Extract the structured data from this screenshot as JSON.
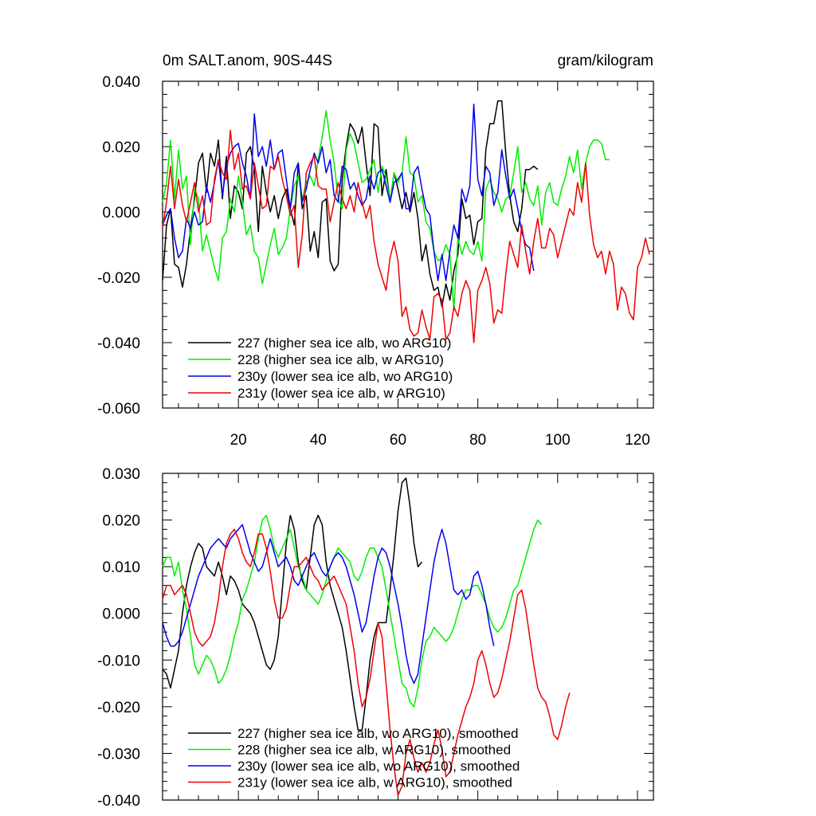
{
  "chart_data": [
    {
      "type": "line",
      "title": "0m SALT.anom, 90S-44S",
      "units": "gram/kilogram",
      "xlim": [
        1,
        124
      ],
      "ylim": [
        -0.06,
        0.04
      ],
      "xticks": [
        20,
        40,
        60,
        80,
        100,
        120
      ],
      "yticks": [
        -0.06,
        -0.04,
        -0.02,
        0.0,
        0.02,
        0.04
      ],
      "ytick_labels": [
        "-0.060",
        "-0.040",
        "-0.020",
        "0.000",
        "0.020",
        "0.040"
      ],
      "legend_position": "bottom-left",
      "series": [
        {
          "name": "227 (higher sea ice alb, wo ARG10)",
          "color": "#000000",
          "x_start": 1,
          "values": [
            -0.021,
            -0.004,
            0.001,
            -0.016,
            -0.017,
            -0.023,
            -0.016,
            -0.005,
            0.004,
            0.015,
            0.018,
            0.006,
            0.018,
            0.014,
            0.022,
            0.004,
            0.017,
            -0.002,
            0.008,
            0.006,
            0.001,
            0.018,
            0.02,
            0.013,
            -0.006,
            0.014,
            0.006,
            0.0,
            0.005,
            -0.002,
            0.004,
            0.007,
            0.001,
            -0.004,
            0.015,
            0.001,
            0.005,
            -0.012,
            -0.006,
            -0.014,
            0.003,
            0.004,
            -0.015,
            -0.018,
            -0.016,
            0.01,
            0.02,
            0.027,
            0.025,
            0.021,
            0.026,
            0.015,
            0.005,
            0.027,
            0.026,
            0.005,
            0.013,
            0.003,
            0.012,
            0.007,
            0.001,
            0.006,
            0.0,
            0.006,
            -0.002,
            -0.015,
            -0.01,
            -0.019,
            -0.024,
            -0.023,
            -0.029,
            -0.022,
            -0.027,
            -0.018,
            -0.013,
            0.004,
            -0.002,
            -0.001,
            -0.01,
            -0.003,
            -0.002,
            0.019,
            0.027,
            0.027,
            0.034,
            0.034,
            0.018,
            0.005,
            -0.003,
            -0.006,
            0.001,
            0.013,
            0.013,
            0.014,
            0.013
          ]
        },
        {
          "name": "228 (higher sea ice alb, w ARG10)",
          "color": "#00ee00",
          "x_start": 1,
          "values": [
            0.003,
            0.009,
            0.022,
            0.004,
            0.019,
            0.007,
            0.011,
            -0.01,
            0.007,
            0.004,
            -0.012,
            -0.007,
            -0.012,
            -0.017,
            -0.021,
            -0.008,
            -0.006,
            0.004,
            0.0,
            0.011,
            0.003,
            -0.007,
            -0.004,
            -0.012,
            -0.014,
            -0.022,
            -0.016,
            -0.01,
            -0.005,
            -0.013,
            -0.011,
            -0.008,
            0.001,
            0.008,
            0.011,
            0.004,
            0.009,
            0.011,
            0.008,
            0.016,
            0.023,
            0.031,
            0.022,
            0.015,
            0.004,
            0.001,
            0.019,
            0.024,
            0.021,
            0.015,
            0.009,
            0.01,
            0.013,
            0.016,
            0.006,
            0.014,
            0.011,
            0.003,
            0.012,
            0.009,
            0.012,
            0.023,
            0.012,
            0.011,
            0.003,
            0.005,
            -0.003,
            -0.005,
            -0.012,
            -0.015,
            -0.014,
            -0.01,
            -0.013,
            -0.03,
            -0.008,
            -0.013,
            -0.009,
            -0.012,
            -0.013,
            -0.009,
            -0.015,
            0.007,
            0.01,
            0.006,
            0.004,
            0.0,
            0.004,
            0.005,
            0.012,
            0.02,
            0.006,
            0.009,
            0.004,
            0.002,
            0.008,
            -0.004,
            0.006,
            0.009,
            0.003,
            0.002,
            0.007,
            0.011,
            0.017,
            0.012,
            0.019,
            0.007,
            0.015,
            0.02,
            0.022,
            0.022,
            0.021,
            0.016,
            0.016
          ]
        },
        {
          "name": "230y (lower sea ice alb, wo ARG10)",
          "color": "#0000ee",
          "x_start": 1,
          "values": [
            -0.004,
            -0.001,
            0.001,
            -0.008,
            -0.014,
            -0.012,
            -0.002,
            -0.005,
            0.0,
            -0.004,
            -0.003,
            0.008,
            0.003,
            0.009,
            0.016,
            0.005,
            0.014,
            0.018,
            0.02,
            0.021,
            0.015,
            0.011,
            0.004,
            0.03,
            0.017,
            0.02,
            0.014,
            0.022,
            0.013,
            0.018,
            0.019,
            0.01,
            0.001,
            0.012,
            0.015,
            0.003,
            0.007,
            0.013,
            0.018,
            0.015,
            0.02,
            0.012,
            0.016,
            0.005,
            0.003,
            0.014,
            0.013,
            0.007,
            0.009,
            0.005,
            0.002,
            0.004,
            0.011,
            0.007,
            0.012,
            0.013,
            0.008,
            0.003,
            0.009,
            0.01,
            0.012,
            0.001,
            0.001,
            0.012,
            0.014,
            0.007,
            0.001,
            -0.001,
            -0.012,
            -0.021,
            -0.013,
            -0.021,
            -0.012,
            -0.004,
            -0.008,
            0.007,
            0.003,
            0.008,
            0.033,
            0.01,
            0.005,
            0.014,
            0.012,
            0.002,
            0.006,
            0.019,
            0.011,
            0.004,
            0.007,
            0.001,
            -0.006,
            -0.01,
            -0.011,
            -0.018
          ]
        },
        {
          "name": "231y (lower sea ice alb, w ARG10)",
          "color": "#ee0000",
          "x_start": 1,
          "values": [
            -0.005,
            0.003,
            0.014,
            0.001,
            0.01,
            0.002,
            -0.003,
            0.003,
            0.009,
            0.0,
            0.005,
            -0.004,
            -0.003,
            0.01,
            0.016,
            0.012,
            0.01,
            0.025,
            0.013,
            0.018,
            0.007,
            0.008,
            0.004,
            0.015,
            0.008,
            0.001,
            0.002,
            0.014,
            0.013,
            0.017,
            0.01,
            0.005,
            -0.001,
            0.002,
            -0.017,
            -0.007,
            0.012,
            0.015,
            0.017,
            0.008,
            0.007,
            0.007,
            -0.003,
            0.003,
            0.009,
            0.004,
            0.001,
            0.005,
            0.0,
            0.009,
            0.003,
            -0.002,
            0.002,
            -0.009,
            -0.016,
            -0.02,
            -0.024,
            -0.014,
            -0.009,
            -0.015,
            -0.032,
            -0.029,
            -0.036,
            -0.038,
            -0.037,
            -0.03,
            -0.035,
            -0.039,
            -0.026,
            -0.025,
            -0.027,
            -0.039,
            -0.037,
            -0.029,
            -0.032,
            -0.025,
            -0.021,
            -0.024,
            -0.04,
            -0.024,
            -0.021,
            -0.017,
            -0.022,
            -0.034,
            -0.03,
            -0.031,
            -0.019,
            -0.009,
            -0.013,
            -0.017,
            -0.004,
            -0.012,
            -0.019,
            -0.009,
            -0.002,
            -0.011,
            -0.011,
            -0.005,
            -0.007,
            -0.014,
            -0.009,
            -0.004,
            0.001,
            -0.001,
            0.009,
            0.003,
            0.015,
            -0.001,
            -0.01,
            -0.014,
            -0.012,
            -0.019,
            -0.012,
            -0.016,
            -0.03,
            -0.023,
            -0.025,
            -0.031,
            -0.033,
            -0.017,
            -0.014,
            -0.008,
            -0.013
          ]
        }
      ]
    },
    {
      "type": "line",
      "xlim": [
        1,
        124
      ],
      "ylim": [
        -0.04,
        0.03
      ],
      "xticks": [
        20,
        40,
        60,
        80,
        100,
        120
      ],
      "yticks": [
        -0.04,
        -0.03,
        -0.02,
        -0.01,
        0.0,
        0.01,
        0.02,
        0.03
      ],
      "ytick_labels": [
        "-0.040",
        "-0.030",
        "-0.020",
        "-0.010",
        "0.000",
        "0.010",
        "0.020",
        "0.030"
      ],
      "legend_position": "bottom-left",
      "series": [
        {
          "name": "227 (higher sea ice alb, wo ARG10), smoothed",
          "color": "#000000",
          "x_start": 1,
          "values": [
            -0.012,
            -0.013,
            -0.016,
            -0.012,
            -0.008,
            0.0,
            0.006,
            0.01,
            0.013,
            0.015,
            0.014,
            0.01,
            0.009,
            0.008,
            0.011,
            0.008,
            0.004,
            0.008,
            0.007,
            0.005,
            0.002,
            0.001,
            0.0,
            -0.002,
            -0.005,
            -0.008,
            -0.011,
            -0.012,
            -0.01,
            -0.005,
            0.005,
            0.015,
            0.021,
            0.018,
            0.011,
            0.007,
            0.005,
            0.012,
            0.019,
            0.021,
            0.019,
            0.011,
            0.006,
            0.003,
            0.0,
            -0.003,
            -0.008,
            -0.014,
            -0.02,
            -0.025,
            -0.025,
            -0.018,
            -0.01,
            -0.005,
            -0.002,
            -0.002,
            -0.002,
            0.005,
            0.013,
            0.022,
            0.028,
            0.029,
            0.023,
            0.015,
            0.01,
            0.011
          ]
        },
        {
          "name": "228 (higher sea ice alb, w ARG10), smoothed",
          "color": "#00ee00",
          "x_start": 1,
          "values": [
            0.01,
            0.012,
            0.012,
            0.008,
            0.011,
            0.005,
            0.001,
            -0.005,
            -0.011,
            -0.013,
            -0.011,
            -0.009,
            -0.01,
            -0.012,
            -0.015,
            -0.014,
            -0.012,
            -0.009,
            -0.005,
            -0.002,
            0.003,
            0.005,
            0.008,
            0.011,
            0.016,
            0.02,
            0.021,
            0.018,
            0.014,
            0.012,
            0.014,
            0.016,
            0.018,
            0.014,
            0.01,
            0.008,
            0.005,
            0.004,
            0.003,
            0.002,
            0.004,
            0.007,
            0.01,
            0.012,
            0.014,
            0.013,
            0.012,
            0.011,
            0.008,
            0.007,
            0.009,
            0.012,
            0.014,
            0.014,
            0.012,
            0.01,
            0.005,
            0.0,
            -0.005,
            -0.01,
            -0.015,
            -0.016,
            -0.019,
            -0.02,
            -0.016,
            -0.01,
            -0.006,
            -0.005,
            -0.003,
            -0.004,
            -0.005,
            -0.006,
            -0.005,
            -0.003,
            0.0,
            0.003,
            0.005,
            0.005,
            0.006,
            0.006,
            0.004,
            0.002,
            -0.001,
            -0.003,
            -0.004,
            -0.003,
            -0.001,
            0.002,
            0.005,
            0.006,
            0.009,
            0.012,
            0.015,
            0.018,
            0.02,
            0.019
          ]
        },
        {
          "name": "230y (lower sea ice alb, wo ARG10), smoothed",
          "color": "#0000ee",
          "x_start": 1,
          "values": [
            -0.002,
            -0.005,
            -0.007,
            -0.007,
            -0.006,
            -0.004,
            -0.001,
            0.002,
            0.005,
            0.008,
            0.01,
            0.012,
            0.014,
            0.015,
            0.016,
            0.015,
            0.014,
            0.016,
            0.017,
            0.018,
            0.019,
            0.016,
            0.013,
            0.011,
            0.009,
            0.01,
            0.013,
            0.016,
            0.013,
            0.01,
            0.011,
            0.012,
            0.01,
            0.007,
            0.006,
            0.008,
            0.01,
            0.012,
            0.013,
            0.011,
            0.009,
            0.008,
            0.01,
            0.012,
            0.013,
            0.012,
            0.01,
            0.007,
            0.004,
            0.0,
            -0.004,
            -0.002,
            0.003,
            0.008,
            0.012,
            0.014,
            0.013,
            0.01,
            0.006,
            0.002,
            -0.003,
            -0.009,
            -0.013,
            -0.015,
            -0.013,
            -0.007,
            -0.001,
            0.005,
            0.011,
            0.015,
            0.018,
            0.015,
            0.01,
            0.005,
            0.004,
            0.005,
            0.003,
            0.004,
            0.008,
            0.009,
            0.006,
            0.002,
            -0.003,
            -0.007
          ]
        },
        {
          "name": "231y (lower sea ice alb, w ARG10), smoothed",
          "color": "#ee0000",
          "x_start": 1,
          "values": [
            0.003,
            0.006,
            0.006,
            0.004,
            0.005,
            0.006,
            0.004,
            0.0,
            -0.004,
            -0.006,
            -0.007,
            -0.006,
            -0.005,
            -0.002,
            0.003,
            0.01,
            0.015,
            0.017,
            0.018,
            0.016,
            0.013,
            0.011,
            0.01,
            0.013,
            0.017,
            0.017,
            0.014,
            0.009,
            0.003,
            -0.001,
            -0.001,
            0.001,
            0.006,
            0.01,
            0.01,
            0.011,
            0.012,
            0.01,
            0.008,
            0.007,
            0.005,
            0.006,
            0.007,
            0.008,
            0.006,
            0.004,
            0.002,
            -0.003,
            -0.008,
            -0.015,
            -0.02,
            -0.018,
            -0.014,
            -0.008,
            -0.002,
            -0.005,
            -0.015,
            -0.025,
            -0.033,
            -0.039,
            -0.037,
            -0.03,
            -0.027,
            -0.031,
            -0.034,
            -0.032,
            -0.034,
            -0.032,
            -0.028,
            -0.025,
            -0.029,
            -0.035,
            -0.034,
            -0.03,
            -0.026,
            -0.023,
            -0.02,
            -0.018,
            -0.015,
            -0.01,
            -0.008,
            -0.011,
            -0.015,
            -0.018,
            -0.017,
            -0.014,
            -0.01,
            -0.006,
            -0.001,
            0.004,
            0.005,
            0.001,
            -0.005,
            -0.011,
            -0.016,
            -0.018,
            -0.019,
            -0.022,
            -0.026,
            -0.027,
            -0.024,
            -0.02,
            -0.017
          ]
        }
      ]
    }
  ]
}
